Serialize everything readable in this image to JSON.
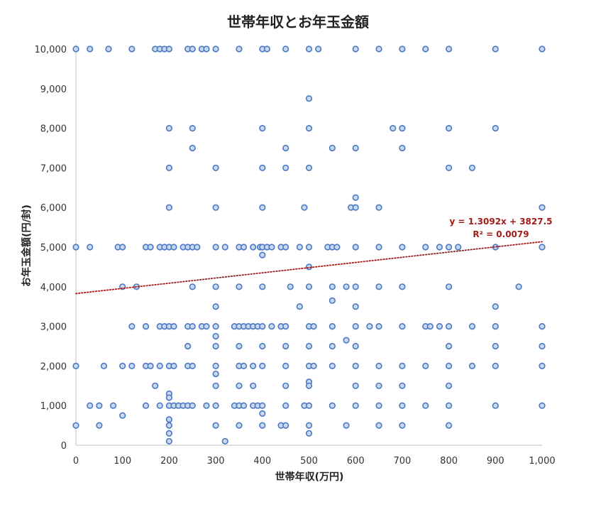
{
  "chart_data": {
    "type": "scatter",
    "title": "世帯年収とお年玉金額",
    "xlabel": "世帯年収(万円)",
    "ylabel": "お年玉金額(円/封)",
    "xlim": [
      0,
      1000
    ],
    "ylim": [
      0,
      10000
    ],
    "x_ticks": [
      "0",
      "100",
      "200",
      "300",
      "400",
      "500",
      "600",
      "700",
      "800",
      "900",
      "1,000"
    ],
    "y_ticks": [
      "0",
      "1,000",
      "2,000",
      "3,000",
      "4,000",
      "5,000",
      "6,000",
      "7,000",
      "8,000",
      "9,000",
      "10,000"
    ],
    "grid": false,
    "legend": "none",
    "colors": {
      "marker_fill": "#c9d9ef",
      "marker_edge": "#4a78c2",
      "trendline": "#a31a1a"
    },
    "trendline": {
      "type": "linear",
      "slope": 1.3092,
      "intercept": 3827.5,
      "equation": "y = 1.3092x + 3827.5",
      "r2": "R² = 0.0079",
      "style": "dotted"
    },
    "points": [
      [
        0,
        10000
      ],
      [
        30,
        10000
      ],
      [
        70,
        10000
      ],
      [
        120,
        10000
      ],
      [
        170,
        10000
      ],
      [
        180,
        10000
      ],
      [
        190,
        10000
      ],
      [
        200,
        10000
      ],
      [
        240,
        10000
      ],
      [
        250,
        10000
      ],
      [
        270,
        10000
      ],
      [
        280,
        10000
      ],
      [
        300,
        10000
      ],
      [
        350,
        10000
      ],
      [
        400,
        10000
      ],
      [
        410,
        10000
      ],
      [
        450,
        10000
      ],
      [
        500,
        10000
      ],
      [
        520,
        10000
      ],
      [
        600,
        10000
      ],
      [
        650,
        10000
      ],
      [
        700,
        10000
      ],
      [
        750,
        10000
      ],
      [
        800,
        10000
      ],
      [
        900,
        10000
      ],
      [
        1000,
        10000
      ],
      [
        500,
        8750
      ],
      [
        200,
        8000
      ],
      [
        250,
        8000
      ],
      [
        400,
        8000
      ],
      [
        500,
        8000
      ],
      [
        680,
        8000
      ],
      [
        700,
        8000
      ],
      [
        800,
        8000
      ],
      [
        900,
        8000
      ],
      [
        250,
        7500
      ],
      [
        450,
        7500
      ],
      [
        550,
        7500
      ],
      [
        600,
        7500
      ],
      [
        700,
        7500
      ],
      [
        200,
        7000
      ],
      [
        300,
        7000
      ],
      [
        400,
        7000
      ],
      [
        450,
        7000
      ],
      [
        500,
        7000
      ],
      [
        800,
        7000
      ],
      [
        850,
        7000
      ],
      [
        600,
        6250
      ],
      [
        200,
        6000
      ],
      [
        300,
        6000
      ],
      [
        400,
        6000
      ],
      [
        490,
        6000
      ],
      [
        590,
        6000
      ],
      [
        600,
        6000
      ],
      [
        650,
        6000
      ],
      [
        1000,
        6000
      ],
      [
        0,
        5000
      ],
      [
        30,
        5000
      ],
      [
        90,
        5000
      ],
      [
        100,
        5000
      ],
      [
        150,
        5000
      ],
      [
        160,
        5000
      ],
      [
        180,
        5000
      ],
      [
        190,
        5000
      ],
      [
        200,
        5000
      ],
      [
        210,
        5000
      ],
      [
        230,
        5000
      ],
      [
        240,
        5000
      ],
      [
        250,
        5000
      ],
      [
        260,
        5000
      ],
      [
        300,
        5000
      ],
      [
        320,
        5000
      ],
      [
        350,
        5000
      ],
      [
        360,
        5000
      ],
      [
        380,
        5000
      ],
      [
        395,
        5000
      ],
      [
        400,
        5000
      ],
      [
        410,
        5000
      ],
      [
        420,
        5000
      ],
      [
        440,
        5000
      ],
      [
        450,
        5000
      ],
      [
        480,
        5000
      ],
      [
        500,
        5000
      ],
      [
        540,
        5000
      ],
      [
        550,
        5000
      ],
      [
        560,
        5000
      ],
      [
        600,
        5000
      ],
      [
        650,
        5000
      ],
      [
        700,
        5000
      ],
      [
        750,
        5000
      ],
      [
        780,
        5000
      ],
      [
        800,
        5000
      ],
      [
        820,
        5000
      ],
      [
        900,
        5000
      ],
      [
        1000,
        5000
      ],
      [
        400,
        4800
      ],
      [
        500,
        4500
      ],
      [
        100,
        4000
      ],
      [
        130,
        4000
      ],
      [
        250,
        4000
      ],
      [
        300,
        4000
      ],
      [
        350,
        4000
      ],
      [
        400,
        4000
      ],
      [
        460,
        4000
      ],
      [
        500,
        4000
      ],
      [
        550,
        4000
      ],
      [
        580,
        4000
      ],
      [
        600,
        4000
      ],
      [
        650,
        4000
      ],
      [
        700,
        4000
      ],
      [
        800,
        4000
      ],
      [
        950,
        4000
      ],
      [
        550,
        3650
      ],
      [
        300,
        3500
      ],
      [
        480,
        3500
      ],
      [
        600,
        3500
      ],
      [
        900,
        3500
      ],
      [
        120,
        3000
      ],
      [
        150,
        3000
      ],
      [
        180,
        3000
      ],
      [
        190,
        3000
      ],
      [
        200,
        3000
      ],
      [
        210,
        3000
      ],
      [
        240,
        3000
      ],
      [
        250,
        3000
      ],
      [
        270,
        3000
      ],
      [
        280,
        3000
      ],
      [
        300,
        3000
      ],
      [
        340,
        3000
      ],
      [
        350,
        3000
      ],
      [
        360,
        3000
      ],
      [
        370,
        3000
      ],
      [
        380,
        3000
      ],
      [
        390,
        3000
      ],
      [
        400,
        3000
      ],
      [
        420,
        3000
      ],
      [
        440,
        3000
      ],
      [
        450,
        3000
      ],
      [
        500,
        3000
      ],
      [
        510,
        3000
      ],
      [
        550,
        3000
      ],
      [
        600,
        3000
      ],
      [
        630,
        3000
      ],
      [
        650,
        3000
      ],
      [
        700,
        3000
      ],
      [
        750,
        3000
      ],
      [
        760,
        3000
      ],
      [
        780,
        3000
      ],
      [
        800,
        3000
      ],
      [
        850,
        3000
      ],
      [
        900,
        3000
      ],
      [
        1000,
        3000
      ],
      [
        300,
        2750
      ],
      [
        580,
        2650
      ],
      [
        240,
        2500
      ],
      [
        300,
        2500
      ],
      [
        350,
        2500
      ],
      [
        400,
        2500
      ],
      [
        450,
        2500
      ],
      [
        500,
        2500
      ],
      [
        550,
        2500
      ],
      [
        600,
        2500
      ],
      [
        800,
        2500
      ],
      [
        900,
        2500
      ],
      [
        1000,
        2500
      ],
      [
        0,
        2000
      ],
      [
        60,
        2000
      ],
      [
        100,
        2000
      ],
      [
        120,
        2000
      ],
      [
        150,
        2000
      ],
      [
        160,
        2000
      ],
      [
        180,
        2000
      ],
      [
        200,
        2000
      ],
      [
        210,
        2000
      ],
      [
        240,
        2000
      ],
      [
        250,
        2000
      ],
      [
        300,
        2000
      ],
      [
        350,
        2000
      ],
      [
        360,
        2000
      ],
      [
        380,
        2000
      ],
      [
        400,
        2000
      ],
      [
        450,
        2000
      ],
      [
        500,
        2000
      ],
      [
        510,
        2000
      ],
      [
        550,
        2000
      ],
      [
        600,
        2000
      ],
      [
        650,
        2000
      ],
      [
        700,
        2000
      ],
      [
        750,
        2000
      ],
      [
        800,
        2000
      ],
      [
        850,
        2000
      ],
      [
        900,
        2000
      ],
      [
        1000,
        2000
      ],
      [
        300,
        1800
      ],
      [
        500,
        1600
      ],
      [
        170,
        1500
      ],
      [
        300,
        1500
      ],
      [
        350,
        1500
      ],
      [
        380,
        1500
      ],
      [
        450,
        1500
      ],
      [
        500,
        1500
      ],
      [
        600,
        1500
      ],
      [
        650,
        1500
      ],
      [
        700,
        1500
      ],
      [
        800,
        1500
      ],
      [
        200,
        1300
      ],
      [
        200,
        1200
      ],
      [
        30,
        1000
      ],
      [
        50,
        1000
      ],
      [
        80,
        1000
      ],
      [
        150,
        1000
      ],
      [
        180,
        1000
      ],
      [
        200,
        1000
      ],
      [
        210,
        1000
      ],
      [
        220,
        1000
      ],
      [
        230,
        1000
      ],
      [
        240,
        1000
      ],
      [
        250,
        1000
      ],
      [
        280,
        1000
      ],
      [
        300,
        1000
      ],
      [
        340,
        1000
      ],
      [
        350,
        1000
      ],
      [
        360,
        1000
      ],
      [
        380,
        1000
      ],
      [
        390,
        1000
      ],
      [
        400,
        1000
      ],
      [
        450,
        1000
      ],
      [
        490,
        1000
      ],
      [
        500,
        1000
      ],
      [
        550,
        1000
      ],
      [
        600,
        1000
      ],
      [
        650,
        1000
      ],
      [
        700,
        1000
      ],
      [
        750,
        1000
      ],
      [
        800,
        1000
      ],
      [
        900,
        1000
      ],
      [
        1000,
        1000
      ],
      [
        400,
        800
      ],
      [
        100,
        750
      ],
      [
        200,
        650
      ],
      [
        0,
        500
      ],
      [
        50,
        500
      ],
      [
        200,
        500
      ],
      [
        300,
        500
      ],
      [
        350,
        500
      ],
      [
        400,
        500
      ],
      [
        440,
        500
      ],
      [
        450,
        500
      ],
      [
        500,
        500
      ],
      [
        580,
        500
      ],
      [
        650,
        500
      ],
      [
        700,
        500
      ],
      [
        800,
        500
      ],
      [
        200,
        300
      ],
      [
        500,
        300
      ],
      [
        200,
        100
      ],
      [
        320,
        100
      ]
    ]
  }
}
